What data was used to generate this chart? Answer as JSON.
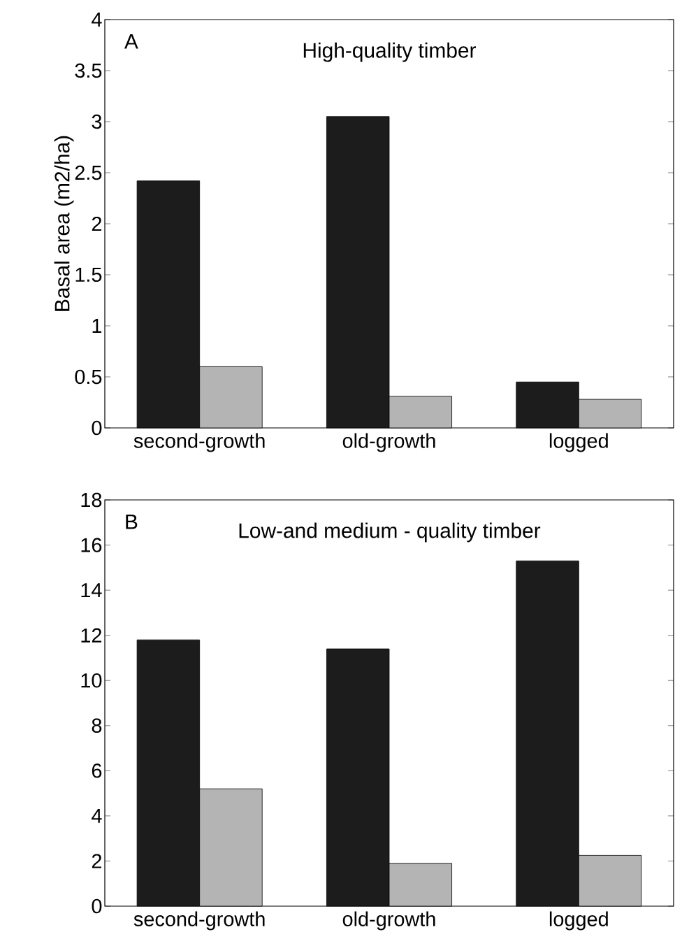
{
  "chart_data": [
    {
      "type": "bar",
      "title": "High-quality timber",
      "ylabel": "Basal area (m2/ha)",
      "annotations": [
        "A"
      ],
      "categories": [
        "second-growth",
        "old-growth",
        "logged"
      ],
      "series": [
        {
          "color": "#1c1c1c",
          "values": [
            2.42,
            3.05,
            0.45
          ]
        },
        {
          "color": "#b4b4b4",
          "values": [
            0.6,
            0.31,
            0.28
          ]
        }
      ],
      "ylim": [
        0,
        4
      ],
      "yticks": [
        0,
        0.5,
        1,
        1.5,
        2,
        2.5,
        3,
        3.5,
        4
      ]
    },
    {
      "type": "bar",
      "title": "Low-and medium - quality timber",
      "annotations": [
        "B"
      ],
      "categories": [
        "second-growth",
        "old-growth",
        "logged"
      ],
      "series": [
        {
          "color": "#1c1c1c",
          "values": [
            11.8,
            11.4,
            15.3
          ]
        },
        {
          "color": "#b4b4b4",
          "values": [
            5.2,
            1.9,
            2.25
          ]
        }
      ],
      "ylim": [
        0,
        18
      ],
      "yticks": [
        0,
        2,
        4,
        6,
        8,
        10,
        12,
        14,
        16,
        18
      ]
    }
  ]
}
